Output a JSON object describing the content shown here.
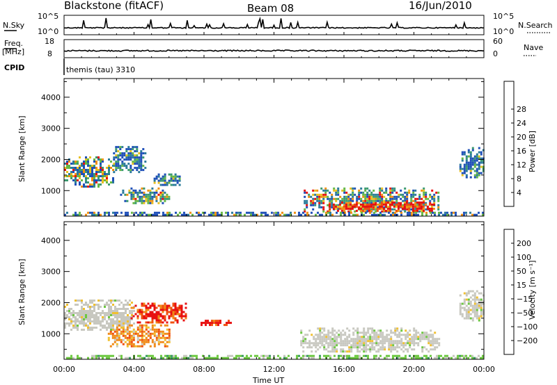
{
  "header": {
    "station": "Blackstone (fitACF)",
    "beam": "Beam 08",
    "date": "16/Jun/2010"
  },
  "status_panels": {
    "nsky_label": "N.Sky",
    "nsky_ticks": [
      "10^5",
      "10^0"
    ],
    "nsearch_label": "N.Search",
    "nsearch_ticks": [
      "10^5",
      "10^0"
    ],
    "freq_label_1": "Freq.",
    "freq_label_2": "[MHz]",
    "freq_ticks": [
      "18",
      "8"
    ],
    "nave_label": "Nave",
    "nave_ticks": [
      "60",
      "0"
    ],
    "cpid_label": "CPID",
    "cpid_text": "themis (tau) 3310"
  },
  "chart_data": [
    {
      "type": "heatmap",
      "name": "power",
      "xlabel": "",
      "ylabel": "Slant Range [km]",
      "ylim": [
        180,
        4600
      ],
      "xlim_hours": [
        0,
        24
      ],
      "y_ticks": [
        "1000",
        "2000",
        "3000",
        "4000"
      ],
      "colorbar": {
        "label": "Power [dB]",
        "ticks": [
          "4",
          "8",
          "12",
          "16",
          "20",
          "24",
          "28"
        ],
        "colors": [
          "#1010f0",
          "#1f4fb8",
          "#2a7a9a",
          "#3a9a70",
          "#66b845",
          "#e8c020",
          "#f09010",
          "#f04a10",
          "#e81010"
        ]
      },
      "echo_regions": [
        {
          "t": [
            0.0,
            2.8
          ],
          "range": [
            1100,
            2100
          ],
          "level": "mixed"
        },
        {
          "t": [
            2.8,
            4.6
          ],
          "range": [
            1600,
            2500
          ],
          "level": "weak"
        },
        {
          "t": [
            3.2,
            6.0
          ],
          "range": [
            600,
            1100
          ],
          "level": "mixed"
        },
        {
          "t": [
            5.0,
            6.7
          ],
          "range": [
            1150,
            1550
          ],
          "level": "weak"
        },
        {
          "t": [
            13.7,
            21.4
          ],
          "range": [
            300,
            1100
          ],
          "level": "mixed"
        },
        {
          "t": [
            15.0,
            21.2
          ],
          "range": [
            350,
            650
          ],
          "level": "strong"
        },
        {
          "t": [
            22.6,
            24.0
          ],
          "range": [
            1400,
            2400
          ],
          "level": "weak"
        },
        {
          "t": [
            0.0,
            24.0
          ],
          "range": [
            190,
            320
          ],
          "level": "ground"
        }
      ]
    },
    {
      "type": "heatmap",
      "name": "velocity",
      "xlabel": "Time UT",
      "ylabel": "Slant Range [km]",
      "ylim": [
        180,
        4600
      ],
      "xlim_hours": [
        0,
        24
      ],
      "x_ticks": [
        "00:00",
        "04:00",
        "08:00",
        "12:00",
        "16:00",
        "20:00",
        "00:00"
      ],
      "y_ticks": [
        "1000",
        "2000",
        "3000",
        "4000"
      ],
      "colorbar": {
        "label": "Velocity [m s⁻¹]",
        "ticks": [
          "200",
          "100",
          "50",
          "15",
          "−15",
          "−50",
          "−100",
          "−200"
        ],
        "colors": [
          "#1a30c8",
          "#2f8fa0",
          "#3a9a60",
          "#6cc840",
          "#c8c8c0",
          "#f0c030",
          "#f08a18",
          "#f05010",
          "#e81010"
        ]
      },
      "echo_regions": [
        {
          "t": [
            0.0,
            4.0
          ],
          "range": [
            1100,
            2100
          ],
          "v": "gray"
        },
        {
          "t": [
            2.5,
            6.0
          ],
          "range": [
            600,
            1300
          ],
          "v": "orange"
        },
        {
          "t": [
            3.8,
            7.0
          ],
          "range": [
            1350,
            2000
          ],
          "v": "red"
        },
        {
          "t": [
            7.8,
            9.5
          ],
          "range": [
            1300,
            1450
          ],
          "v": "red"
        },
        {
          "t": [
            13.5,
            21.4
          ],
          "range": [
            400,
            1200
          ],
          "v": "gray"
        },
        {
          "t": [
            0.0,
            24.0
          ],
          "range": [
            190,
            320
          ],
          "v": "green"
        },
        {
          "t": [
            22.6,
            24.0
          ],
          "range": [
            1400,
            2400
          ],
          "v": "gray"
        }
      ]
    }
  ]
}
